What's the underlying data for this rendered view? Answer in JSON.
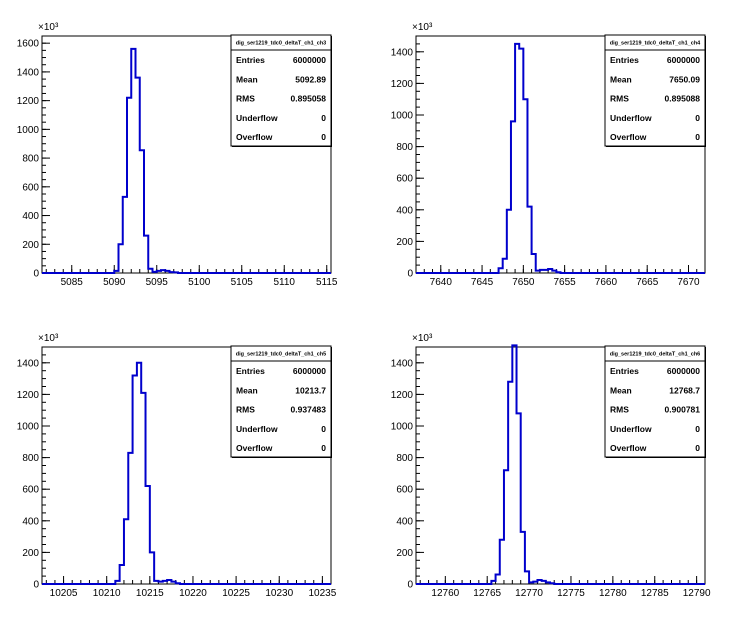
{
  "chart_data": [
    {
      "type": "histogram",
      "exponent_label": "×10³",
      "xlim": [
        5081.5,
        5115.5
      ],
      "ylim": [
        0,
        1650
      ],
      "xticks": [
        5085,
        5090,
        5095,
        5100,
        5105,
        5110,
        5115
      ],
      "yticks": [
        0,
        200,
        400,
        600,
        800,
        1000,
        1200,
        1400,
        1600
      ],
      "bins": [
        [
          5090.0,
          5090.5,
          15
        ],
        [
          5090.5,
          5091.0,
          200
        ],
        [
          5091.0,
          5091.5,
          530
        ],
        [
          5091.5,
          5092.0,
          1220
        ],
        [
          5092.0,
          5092.5,
          1560
        ],
        [
          5092.5,
          5093.0,
          1360
        ],
        [
          5093.0,
          5093.5,
          855
        ],
        [
          5093.5,
          5094.0,
          260
        ],
        [
          5094.0,
          5094.5,
          30
        ],
        [
          5094.5,
          5095.0,
          8
        ],
        [
          5095.0,
          5095.5,
          15
        ],
        [
          5095.5,
          5096.0,
          20
        ],
        [
          5096.0,
          5096.5,
          15
        ],
        [
          5096.5,
          5097.0,
          6
        ],
        [
          5097.0,
          5097.5,
          4
        ]
      ],
      "stats": {
        "title": "dig_ser1219_tdc0_deltaT_ch1_ch3",
        "rows": [
          {
            "label": "Entries",
            "value": "6000000"
          },
          {
            "label": "Mean",
            "value": "5092.89"
          },
          {
            "label": "RMS",
            "value": "0.895058"
          },
          {
            "label": "Underflow",
            "value": "0"
          },
          {
            "label": "Overflow",
            "value": "0"
          }
        ]
      }
    },
    {
      "type": "histogram",
      "exponent_label": "×10³",
      "xlim": [
        7637,
        7672
      ],
      "ylim": [
        0,
        1500
      ],
      "xticks": [
        7640,
        7645,
        7650,
        7655,
        7660,
        7665,
        7670
      ],
      "yticks": [
        0,
        200,
        400,
        600,
        800,
        1000,
        1200,
        1400
      ],
      "bins": [
        [
          7647.0,
          7647.5,
          30
        ],
        [
          7647.5,
          7648.0,
          90
        ],
        [
          7648.0,
          7648.5,
          400
        ],
        [
          7648.5,
          7649.0,
          960
        ],
        [
          7649.0,
          7649.5,
          1450
        ],
        [
          7649.5,
          7650.0,
          1420
        ],
        [
          7650.0,
          7650.5,
          1100
        ],
        [
          7650.5,
          7651.0,
          420
        ],
        [
          7651.0,
          7651.5,
          120
        ],
        [
          7651.5,
          7652.0,
          15
        ],
        [
          7652.0,
          7652.5,
          20
        ],
        [
          7652.5,
          7653.0,
          20
        ],
        [
          7653.0,
          7653.5,
          25
        ],
        [
          7653.5,
          7654.0,
          15
        ],
        [
          7654.0,
          7654.5,
          5
        ]
      ],
      "stats": {
        "title": "dig_ser1219_tdc0_deltaT_ch1_ch4",
        "rows": [
          {
            "label": "Entries",
            "value": "6000000"
          },
          {
            "label": "Mean",
            "value": "7650.09"
          },
          {
            "label": "RMS",
            "value": "0.895088"
          },
          {
            "label": "Underflow",
            "value": "0"
          },
          {
            "label": "Overflow",
            "value": "0"
          }
        ]
      }
    },
    {
      "type": "histogram",
      "exponent_label": "×10³",
      "xlim": [
        10202.5,
        10236.0
      ],
      "ylim": [
        0,
        1500
      ],
      "xticks": [
        10205,
        10210,
        10215,
        10220,
        10225,
        10230,
        10235
      ],
      "yticks": [
        0,
        200,
        400,
        600,
        800,
        1000,
        1200,
        1400
      ],
      "bins": [
        [
          10211.0,
          10211.5,
          20
        ],
        [
          10211.5,
          10212.0,
          120
        ],
        [
          10212.0,
          10212.5,
          410
        ],
        [
          10212.5,
          10213.0,
          830
        ],
        [
          10213.0,
          10213.5,
          1320
        ],
        [
          10213.5,
          10214.0,
          1400
        ],
        [
          10214.0,
          10214.5,
          1210
        ],
        [
          10214.5,
          10215.0,
          620
        ],
        [
          10215.0,
          10215.5,
          200
        ],
        [
          10215.5,
          10216.0,
          20
        ],
        [
          10216.0,
          10216.5,
          15
        ],
        [
          10216.5,
          10217.0,
          20
        ],
        [
          10217.0,
          10217.5,
          25
        ],
        [
          10217.5,
          10218.0,
          15
        ],
        [
          10218.0,
          10218.5,
          5
        ]
      ],
      "stats": {
        "title": "dig_ser1219_tdc0_deltaT_ch1_ch5",
        "rows": [
          {
            "label": "Entries",
            "value": "6000000"
          },
          {
            "label": "Mean",
            "value": "10213.7"
          },
          {
            "label": "RMS",
            "value": "0.937483"
          },
          {
            "label": "Underflow",
            "value": "0"
          },
          {
            "label": "Overflow",
            "value": "0"
          }
        ]
      }
    },
    {
      "type": "histogram",
      "exponent_label": "×10³",
      "xlim": [
        12756.5,
        12791.0
      ],
      "ylim": [
        0,
        1500
      ],
      "xticks": [
        12760,
        12765,
        12770,
        12775,
        12780,
        12785,
        12790
      ],
      "yticks": [
        0,
        200,
        400,
        600,
        800,
        1000,
        1200,
        1400
      ],
      "bins": [
        [
          12765.5,
          12766.0,
          20
        ],
        [
          12766.0,
          12766.5,
          60
        ],
        [
          12766.5,
          12767.0,
          280
        ],
        [
          12767.0,
          12767.5,
          720
        ],
        [
          12767.5,
          12768.0,
          1280
        ],
        [
          12768.0,
          12768.5,
          1510
        ],
        [
          12768.5,
          12769.0,
          1080
        ],
        [
          12769.0,
          12769.5,
          330
        ],
        [
          12769.5,
          12770.0,
          80
        ],
        [
          12770.0,
          12770.5,
          10
        ],
        [
          12770.5,
          12771.0,
          15
        ],
        [
          12771.0,
          12771.5,
          25
        ],
        [
          12771.5,
          12772.0,
          20
        ],
        [
          12772.0,
          12772.5,
          10
        ],
        [
          12772.5,
          12773.0,
          5
        ]
      ],
      "stats": {
        "title": "dig_ser1219_tdc0_deltaT_ch1_ch6",
        "rows": [
          {
            "label": "Entries",
            "value": "6000000"
          },
          {
            "label": "Mean",
            "value": "12768.7"
          },
          {
            "label": "RMS",
            "value": "0.900781"
          },
          {
            "label": "Underflow",
            "value": "0"
          },
          {
            "label": "Overflow",
            "value": "0"
          }
        ]
      }
    }
  ],
  "colors": {
    "line": "#0000cc",
    "frame": "#000000",
    "background": "#ffffff"
  }
}
